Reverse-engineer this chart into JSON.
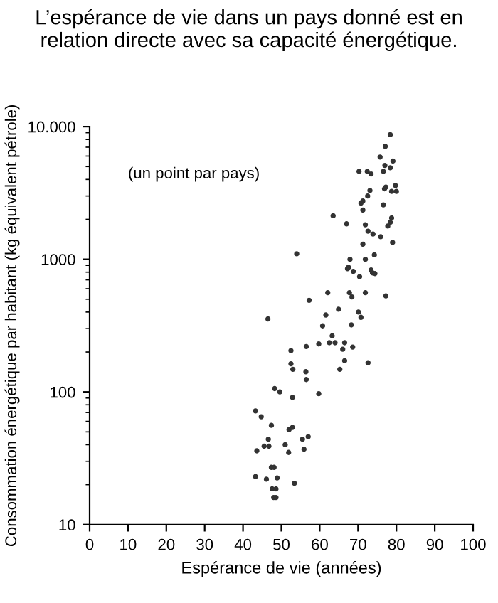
{
  "chart_data": {
    "type": "scatter",
    "title": "L’espérance de vie dans un pays donné est en relation directe avec sa capacité énergétique.",
    "xlabel": "Espérance de vie (années)",
    "ylabel": "Consommation énergétique par habitant (kg équivalent pétrole)",
    "annotations": [
      "(un point par pays)"
    ],
    "x": [
      78.4,
      77.1,
      75.75,
      79.1,
      77,
      78.4,
      70.25,
      72.4,
      73.4,
      76.6,
      79.75,
      78.75,
      76.9,
      77.25,
      80,
      73.1,
      72.5,
      71.25,
      70.75,
      71.25,
      76.6,
      63.5,
      67,
      78.75,
      78.4,
      77.75,
      71.9,
      72.6,
      73.9,
      75.9,
      79,
      71.25,
      54,
      74.25,
      71.9,
      67.9,
      67.5,
      68.75,
      67.25,
      70.4,
      73.4,
      74.4,
      73.75,
      62.1,
      67.75,
      68.4,
      71.9,
      77.25,
      57.25,
      64.9,
      61.6,
      70.1,
      70.75,
      46.5,
      60.75,
      68.25,
      63.25,
      62.5,
      64,
      66.5,
      59.75,
      56.5,
      66,
      68.6,
      52.5,
      52.5,
      53,
      66.5,
      72.6,
      65.25,
      56.4,
      56.5,
      48.25,
      49.6,
      59.75,
      52.9,
      43.25,
      44.75,
      47.4,
      52,
      52.9,
      57,
      55.5,
      46.6,
      45.5,
      46.75,
      43.6,
      51,
      51.9,
      55.9,
      47.4,
      48.1,
      43.25,
      46.1,
      48.9,
      53.4,
      47.6,
      48.6,
      48,
      48.6
    ],
    "values": [
      8700,
      7100,
      5900,
      5500,
      5100,
      4900,
      4600,
      4600,
      4400,
      4600,
      3600,
      3250,
      3400,
      3500,
      3250,
      3300,
      3000,
      2750,
      2650,
      2350,
      2570,
      2130,
      1850,
      2050,
      1900,
      1780,
      1820,
      1630,
      1550,
      1480,
      1340,
      1300,
      1100,
      1080,
      1000,
      1000,
      870,
      810,
      850,
      740,
      830,
      780,
      790,
      560,
      560,
      520,
      560,
      530,
      490,
      420,
      380,
      400,
      365,
      355,
      315,
      320,
      265,
      235,
      235,
      235,
      230,
      220,
      210,
      218,
      205,
      163,
      148,
      172,
      166,
      148,
      142,
      124,
      106,
      100,
      97,
      91,
      72,
      65,
      56,
      52,
      54,
      46,
      44,
      44,
      39,
      39,
      36,
      40,
      35,
      37,
      27,
      27,
      23,
      22,
      22.5,
      20.5,
      18.6,
      18.6,
      16,
      16
    ],
    "color": "#333333",
    "marker": "circle",
    "log": "y",
    "grid": false,
    "legend": false,
    "xlim": [
      0,
      100
    ],
    "xticks": [
      0,
      10,
      20,
      30,
      40,
      50,
      60,
      70,
      80,
      90,
      100
    ],
    "ylim": [
      10,
      10000
    ],
    "yticks": [
      10,
      100,
      1000,
      {
        "value": 10000,
        "label": "10.000"
      }
    ]
  }
}
